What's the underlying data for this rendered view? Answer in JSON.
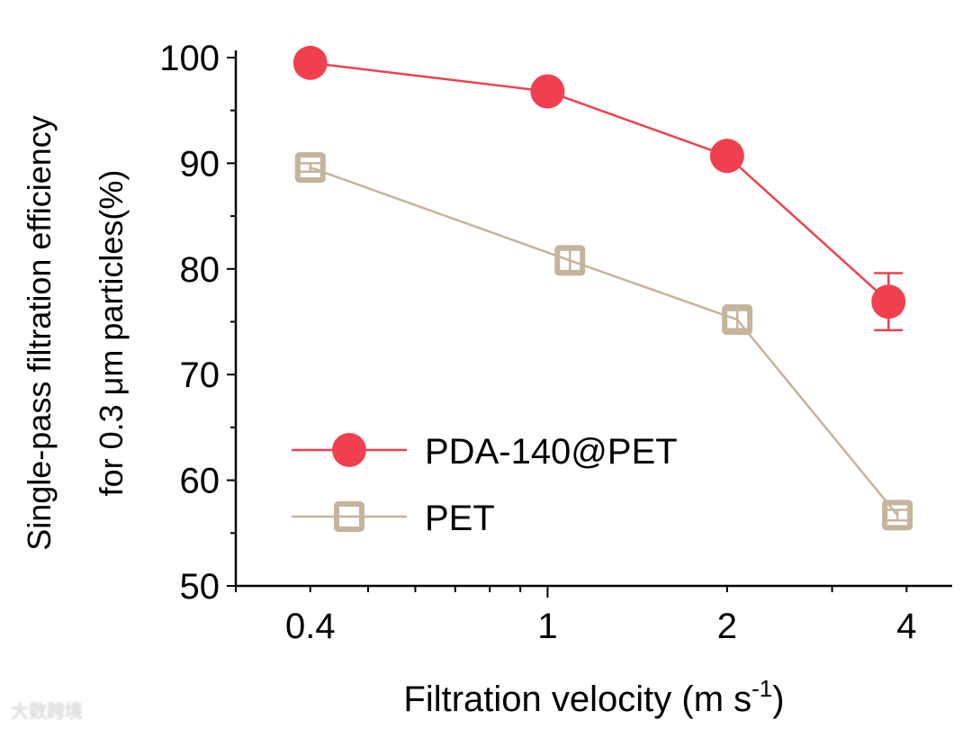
{
  "chart_data": {
    "type": "line",
    "title": "",
    "xlabel": "Filtration velocity (m s",
    "xlabel_sup": "-1",
    "xlabel_end": ")",
    "ylabel": [
      "Single-pass filtration efficiency",
      "for 0.3 μm particles(%)"
    ],
    "xscale": "log",
    "xlim": [
      0.3,
      4.77
    ],
    "ylim": [
      50,
      100
    ],
    "xticks": [
      0.4,
      1,
      2,
      4
    ],
    "xtick_labels": [
      "0.4",
      "1",
      "2",
      "4"
    ],
    "yticks": [
      50,
      60,
      70,
      80,
      90,
      100
    ],
    "ytick_labels": [
      "50",
      "60",
      "70",
      "80",
      "90",
      "100"
    ],
    "legend_position": "bottom-left",
    "series": [
      {
        "name": "PDA-140@PET",
        "color": "#f0404f",
        "marker": "filled-circle",
        "x": [
          0.4,
          1,
          2,
          3.73
        ],
        "y": [
          99.5,
          96.8,
          90.7,
          76.9
        ],
        "err": [
          0.3,
          0.4,
          0.6,
          2.7
        ]
      },
      {
        "name": "PET",
        "color": "#c4b49c",
        "marker": "open-square",
        "x": [
          0.4,
          1.09,
          2.08,
          3.86
        ],
        "y": [
          89.6,
          80.8,
          75.2,
          56.7
        ],
        "err": [
          0.4,
          1.0,
          0.9,
          0.5
        ]
      }
    ]
  },
  "watermark": "大数跨境"
}
